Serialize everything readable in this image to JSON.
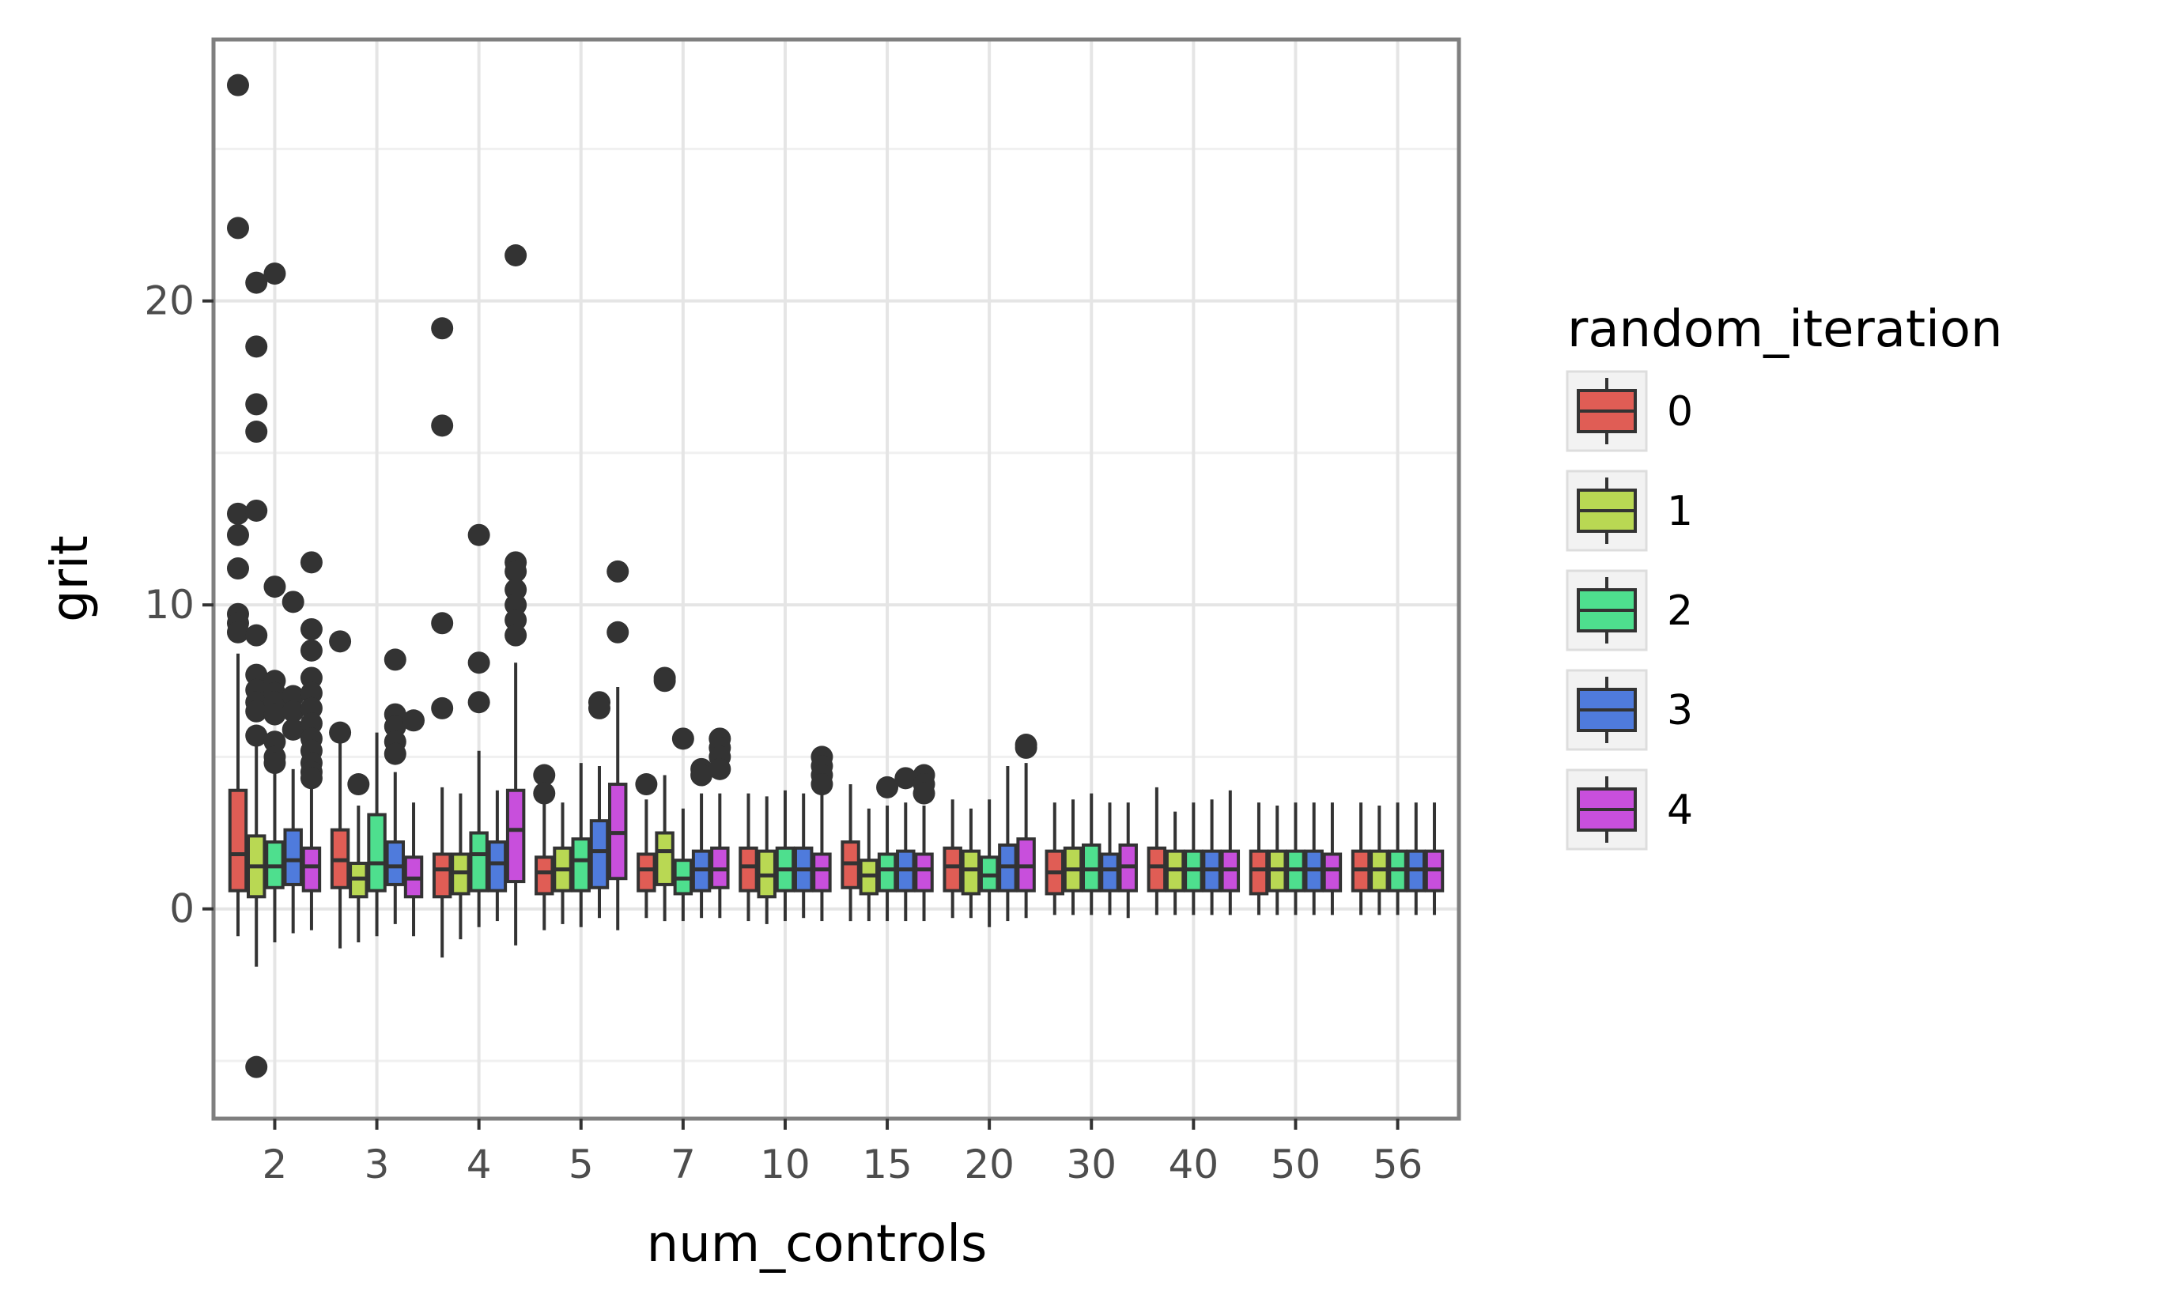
{
  "chart_data": {
    "type": "boxplot",
    "xlabel": "num_controls",
    "ylabel": "grit",
    "categories": [
      "2",
      "3",
      "4",
      "5",
      "7",
      "10",
      "15",
      "20",
      "30",
      "40",
      "50",
      "56"
    ],
    "y_ticks": [
      0,
      10,
      20
    ],
    "ylim": [
      -6.9,
      28.6
    ],
    "grid": true,
    "legend": {
      "title": "random_iteration",
      "placement": "right",
      "entries": [
        "0",
        "1",
        "2",
        "3",
        "4"
      ]
    },
    "colors": [
      "#e05d55",
      "#b9d853",
      "#4edf8e",
      "#4f7bdc",
      "#c84fdc"
    ],
    "series": [
      {
        "name": "0",
        "boxes": [
          {
            "lo": -0.9,
            "q1": 0.6,
            "med": 1.8,
            "q3": 3.9,
            "hi": 8.4,
            "out": [
              27.1,
              22.4,
              13.0,
              12.3,
              11.2,
              9.7,
              9.4,
              9.1
            ]
          },
          {
            "lo": -1.3,
            "q1": 0.7,
            "med": 1.6,
            "q3": 2.6,
            "hi": 5.6,
            "out": [
              8.8,
              5.8
            ]
          },
          {
            "lo": -1.6,
            "q1": 0.4,
            "med": 1.3,
            "q3": 1.8,
            "hi": 4.0,
            "out": [
              19.1,
              15.9,
              9.4,
              6.6
            ]
          },
          {
            "lo": -0.7,
            "q1": 0.5,
            "med": 1.2,
            "q3": 1.7,
            "hi": 3.6,
            "out": [
              4.4,
              3.8
            ]
          },
          {
            "lo": -0.3,
            "q1": 0.6,
            "med": 1.3,
            "q3": 1.8,
            "hi": 3.6,
            "out": [
              4.1
            ]
          },
          {
            "lo": -0.4,
            "q1": 0.6,
            "med": 1.4,
            "q3": 2.0,
            "hi": 3.8,
            "out": []
          },
          {
            "lo": -0.4,
            "q1": 0.7,
            "med": 1.5,
            "q3": 2.2,
            "hi": 4.1,
            "out": []
          },
          {
            "lo": -0.3,
            "q1": 0.6,
            "med": 1.4,
            "q3": 2.0,
            "hi": 3.6,
            "out": []
          },
          {
            "lo": -0.2,
            "q1": 0.5,
            "med": 1.2,
            "q3": 1.9,
            "hi": 3.5,
            "out": []
          },
          {
            "lo": -0.2,
            "q1": 0.6,
            "med": 1.4,
            "q3": 2.0,
            "hi": 4.0,
            "out": []
          },
          {
            "lo": -0.2,
            "q1": 0.5,
            "med": 1.3,
            "q3": 1.9,
            "hi": 3.5,
            "out": []
          },
          {
            "lo": -0.2,
            "q1": 0.6,
            "med": 1.3,
            "q3": 1.9,
            "hi": 3.5,
            "out": []
          }
        ]
      },
      {
        "name": "1",
        "boxes": [
          {
            "lo": -1.9,
            "q1": 0.4,
            "med": 1.4,
            "q3": 2.4,
            "hi": 5.4,
            "out": [
              20.6,
              18.5,
              16.6,
              15.7,
              13.1,
              9.0,
              7.7,
              7.2,
              6.8,
              6.5,
              5.7,
              -5.2
            ]
          },
          {
            "lo": -1.1,
            "q1": 0.4,
            "med": 1.0,
            "q3": 1.5,
            "hi": 3.4,
            "out": [
              4.1
            ]
          },
          {
            "lo": -1.0,
            "q1": 0.5,
            "med": 1.2,
            "q3": 1.8,
            "hi": 3.8,
            "out": []
          },
          {
            "lo": -0.5,
            "q1": 0.6,
            "med": 1.3,
            "q3": 2.0,
            "hi": 3.5,
            "out": []
          },
          {
            "lo": -0.4,
            "q1": 0.8,
            "med": 1.9,
            "q3": 2.5,
            "hi": 4.4,
            "out": [
              7.6,
              7.5
            ]
          },
          {
            "lo": -0.5,
            "q1": 0.4,
            "med": 1.1,
            "q3": 1.9,
            "hi": 3.7,
            "out": []
          },
          {
            "lo": -0.4,
            "q1": 0.5,
            "med": 1.1,
            "q3": 1.6,
            "hi": 3.3,
            "out": []
          },
          {
            "lo": -0.3,
            "q1": 0.5,
            "med": 1.3,
            "q3": 1.9,
            "hi": 3.3,
            "out": []
          },
          {
            "lo": -0.2,
            "q1": 0.6,
            "med": 1.3,
            "q3": 2.0,
            "hi": 3.6,
            "out": []
          },
          {
            "lo": -0.2,
            "q1": 0.6,
            "med": 1.3,
            "q3": 1.9,
            "hi": 3.2,
            "out": []
          },
          {
            "lo": -0.2,
            "q1": 0.6,
            "med": 1.3,
            "q3": 1.9,
            "hi": 3.4,
            "out": []
          },
          {
            "lo": -0.2,
            "q1": 0.6,
            "med": 1.3,
            "q3": 1.9,
            "hi": 3.4,
            "out": []
          }
        ]
      },
      {
        "name": "2",
        "boxes": [
          {
            "lo": -1.1,
            "q1": 0.7,
            "med": 1.4,
            "q3": 2.2,
            "hi": 4.5,
            "out": [
              20.9,
              10.6,
              7.5,
              7.1,
              6.8,
              6.4,
              5.5,
              5.0,
              4.8
            ]
          },
          {
            "lo": -0.9,
            "q1": 0.6,
            "med": 1.5,
            "q3": 3.1,
            "hi": 5.8,
            "out": []
          },
          {
            "lo": -0.6,
            "q1": 0.6,
            "med": 1.8,
            "q3": 2.5,
            "hi": 5.2,
            "out": [
              12.3,
              8.1,
              6.8
            ]
          },
          {
            "lo": -0.6,
            "q1": 0.6,
            "med": 1.6,
            "q3": 2.3,
            "hi": 4.8,
            "out": []
          },
          {
            "lo": -0.4,
            "q1": 0.5,
            "med": 1.0,
            "q3": 1.6,
            "hi": 3.3,
            "out": [
              5.6
            ]
          },
          {
            "lo": -0.4,
            "q1": 0.6,
            "med": 1.3,
            "q3": 2.0,
            "hi": 3.9,
            "out": []
          },
          {
            "lo": -0.4,
            "q1": 0.6,
            "med": 1.3,
            "q3": 1.8,
            "hi": 3.4,
            "out": [
              4.0
            ]
          },
          {
            "lo": -0.6,
            "q1": 0.6,
            "med": 1.1,
            "q3": 1.7,
            "hi": 3.6,
            "out": []
          },
          {
            "lo": -0.2,
            "q1": 0.6,
            "med": 1.3,
            "q3": 2.1,
            "hi": 3.8,
            "out": []
          },
          {
            "lo": -0.2,
            "q1": 0.6,
            "med": 1.3,
            "q3": 1.9,
            "hi": 3.5,
            "out": []
          },
          {
            "lo": -0.2,
            "q1": 0.6,
            "med": 1.3,
            "q3": 1.9,
            "hi": 3.5,
            "out": []
          },
          {
            "lo": -0.2,
            "q1": 0.6,
            "med": 1.3,
            "q3": 1.9,
            "hi": 3.5,
            "out": []
          }
        ]
      },
      {
        "name": "3",
        "boxes": [
          {
            "lo": -0.8,
            "q1": 0.8,
            "med": 1.6,
            "q3": 2.6,
            "hi": 4.6,
            "out": [
              10.1,
              7.0,
              6.5,
              5.9
            ]
          },
          {
            "lo": -0.5,
            "q1": 0.8,
            "med": 1.4,
            "q3": 2.2,
            "hi": 4.5,
            "out": [
              8.2,
              6.4,
              6.0,
              5.5,
              5.1
            ]
          },
          {
            "lo": -0.4,
            "q1": 0.6,
            "med": 1.5,
            "q3": 2.2,
            "hi": 3.9,
            "out": []
          },
          {
            "lo": -0.3,
            "q1": 0.7,
            "med": 1.9,
            "q3": 2.9,
            "hi": 4.7,
            "out": [
              6.8,
              6.6
            ]
          },
          {
            "lo": -0.3,
            "q1": 0.6,
            "med": 1.3,
            "q3": 1.9,
            "hi": 3.8,
            "out": [
              4.6,
              4.4
            ]
          },
          {
            "lo": -0.3,
            "q1": 0.6,
            "med": 1.3,
            "q3": 2.0,
            "hi": 3.8,
            "out": []
          },
          {
            "lo": -0.4,
            "q1": 0.6,
            "med": 1.3,
            "q3": 1.9,
            "hi": 3.5,
            "out": [
              4.3
            ]
          },
          {
            "lo": -0.4,
            "q1": 0.6,
            "med": 1.4,
            "q3": 2.1,
            "hi": 4.7,
            "out": []
          },
          {
            "lo": -0.2,
            "q1": 0.6,
            "med": 1.3,
            "q3": 1.8,
            "hi": 3.5,
            "out": []
          },
          {
            "lo": -0.2,
            "q1": 0.6,
            "med": 1.3,
            "q3": 1.9,
            "hi": 3.6,
            "out": []
          },
          {
            "lo": -0.2,
            "q1": 0.6,
            "med": 1.3,
            "q3": 1.9,
            "hi": 3.5,
            "out": []
          },
          {
            "lo": -0.2,
            "q1": 0.6,
            "med": 1.3,
            "q3": 1.9,
            "hi": 3.5,
            "out": []
          }
        ]
      },
      {
        "name": "4",
        "boxes": [
          {
            "lo": -0.7,
            "q1": 0.6,
            "med": 1.4,
            "q3": 2.0,
            "hi": 4.2,
            "out": [
              11.4,
              9.2,
              8.5,
              7.6,
              7.1,
              6.6,
              6.1,
              5.6,
              5.2,
              4.8,
              4.5,
              4.3
            ]
          },
          {
            "lo": -0.9,
            "q1": 0.4,
            "med": 1.0,
            "q3": 1.7,
            "hi": 3.5,
            "out": [
              6.2
            ]
          },
          {
            "lo": -1.2,
            "q1": 0.9,
            "med": 2.6,
            "q3": 3.9,
            "hi": 8.1,
            "out": [
              21.5,
              11.4,
              11.1,
              10.5,
              10.0,
              9.5,
              9.0
            ]
          },
          {
            "lo": -0.7,
            "q1": 1.0,
            "med": 2.5,
            "q3": 4.1,
            "hi": 7.3,
            "out": [
              11.1,
              9.1
            ]
          },
          {
            "lo": -0.3,
            "q1": 0.7,
            "med": 1.3,
            "q3": 2.0,
            "hi": 3.8,
            "out": [
              5.6,
              5.3,
              5.0,
              4.6
            ]
          },
          {
            "lo": -0.4,
            "q1": 0.6,
            "med": 1.3,
            "q3": 1.8,
            "hi": 3.8,
            "out": [
              5.0,
              4.7,
              4.4,
              4.1
            ]
          },
          {
            "lo": -0.4,
            "q1": 0.6,
            "med": 1.3,
            "q3": 1.8,
            "hi": 3.4,
            "out": [
              4.4,
              4.1,
              3.8
            ]
          },
          {
            "lo": -0.3,
            "q1": 0.6,
            "med": 1.4,
            "q3": 2.3,
            "hi": 4.8,
            "out": [
              5.4,
              5.3
            ]
          },
          {
            "lo": -0.3,
            "q1": 0.6,
            "med": 1.4,
            "q3": 2.1,
            "hi": 3.5,
            "out": []
          },
          {
            "lo": -0.2,
            "q1": 0.6,
            "med": 1.3,
            "q3": 1.9,
            "hi": 3.9,
            "out": []
          },
          {
            "lo": -0.2,
            "q1": 0.6,
            "med": 1.3,
            "q3": 1.8,
            "hi": 3.5,
            "out": []
          },
          {
            "lo": -0.2,
            "q1": 0.6,
            "med": 1.3,
            "q3": 1.9,
            "hi": 3.5,
            "out": []
          }
        ]
      }
    ]
  }
}
